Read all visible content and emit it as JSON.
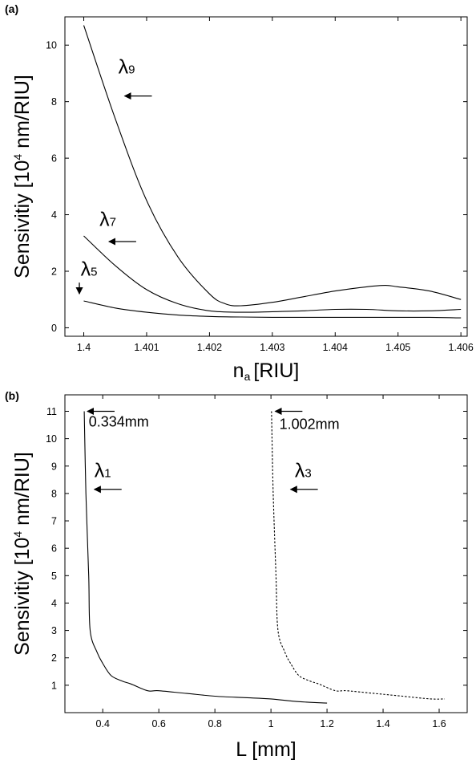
{
  "chart_data": [
    {
      "type": "line",
      "panel_label": "(a)",
      "xlabel": {
        "main": "n",
        "sub": "a",
        "unit": "[RIU]"
      },
      "ylabel": {
        "main": "Sensivitiy [10",
        "sup": "4",
        "rest": " nm/RIU]"
      },
      "xlim": [
        1.3997,
        1.4061
      ],
      "ylim": [
        -0.3,
        11
      ],
      "xticks": [
        1.4,
        1.401,
        1.402,
        1.403,
        1.404,
        1.405,
        1.406
      ],
      "xtick_labels": [
        "1.4",
        "1.401",
        "1.402",
        "1.403",
        "1.404",
        "1.405",
        "1.406"
      ],
      "yticks": [
        0,
        2,
        4,
        6,
        8,
        10
      ],
      "ytick_labels": [
        "0",
        "2",
        "4",
        "6",
        "8",
        "10"
      ],
      "grid": false,
      "series": [
        {
          "name": "λ9",
          "dash": false,
          "x": [
            1.4,
            1.4005,
            1.401,
            1.4015,
            1.402,
            1.40225,
            1.4025,
            1.403,
            1.4035,
            1.404,
            1.4045,
            1.4048,
            1.405,
            1.4055,
            1.406
          ],
          "y": [
            10.7,
            7.4,
            4.5,
            2.5,
            1.2,
            0.85,
            0.78,
            0.9,
            1.1,
            1.3,
            1.45,
            1.5,
            1.45,
            1.3,
            1.0
          ]
        },
        {
          "name": "λ7",
          "dash": false,
          "x": [
            1.4,
            1.4005,
            1.401,
            1.4015,
            1.402,
            1.4025,
            1.403,
            1.4035,
            1.404,
            1.4045,
            1.405,
            1.4055,
            1.406
          ],
          "y": [
            3.25,
            2.2,
            1.35,
            0.85,
            0.6,
            0.55,
            0.57,
            0.6,
            0.65,
            0.65,
            0.6,
            0.6,
            0.65
          ]
        },
        {
          "name": "λ5",
          "dash": false,
          "x": [
            1.4,
            1.4005,
            1.401,
            1.4015,
            1.402,
            1.4025,
            1.403,
            1.4035,
            1.404,
            1.4045,
            1.405,
            1.4055,
            1.406
          ],
          "y": [
            0.95,
            0.7,
            0.55,
            0.45,
            0.4,
            0.38,
            0.37,
            0.37,
            0.37,
            0.37,
            0.37,
            0.37,
            0.35
          ]
        }
      ],
      "annotations": [
        {
          "label_main": "λ",
          "label_sub": "9",
          "x": 1.40055,
          "y": 9.0,
          "arrow": "left",
          "ax": 1.40065,
          "ay": 8.2
        },
        {
          "label_main": "λ",
          "label_sub": "7",
          "x": 1.40025,
          "y": 3.6,
          "arrow": "left",
          "ax": 1.4004,
          "ay": 3.05
        },
        {
          "label_main": "λ",
          "label_sub": "5",
          "x": 1.39995,
          "y": 1.85,
          "arrow": "down",
          "ax": 1.39993,
          "ay": 1.2
        }
      ]
    },
    {
      "type": "line",
      "panel_label": "(b)",
      "xlabel": {
        "main": "L [mm]",
        "sub": "",
        "unit": ""
      },
      "ylabel": {
        "main": "Sensivitiy [10",
        "sup": "4",
        "rest": " nm/RIU]"
      },
      "xlim": [
        0.265,
        1.7
      ],
      "ylim": [
        0,
        11.6
      ],
      "xticks": [
        0.4,
        0.6,
        0.8,
        1.0,
        1.2,
        1.4,
        1.6
      ],
      "xtick_labels": [
        "0.4",
        "0.6",
        "0.8",
        "1",
        "1.2",
        "1.4",
        "1.6"
      ],
      "yticks": [
        1,
        2,
        3,
        4,
        5,
        6,
        7,
        8,
        9,
        10,
        11
      ],
      "ytick_labels": [
        "1",
        "2",
        "3",
        "4",
        "5",
        "6",
        "7",
        "8",
        "9",
        "10",
        "11"
      ],
      "grid": false,
      "series": [
        {
          "name": "λ1",
          "dash": false,
          "x": [
            0.334,
            0.34,
            0.35,
            0.355,
            0.38,
            0.4,
            0.43,
            0.47,
            0.5,
            0.56,
            0.6,
            0.7,
            0.8,
            0.9,
            1.0,
            1.1,
            1.2
          ],
          "y": [
            11.0,
            8.0,
            5.0,
            3.0,
            2.2,
            1.8,
            1.35,
            1.15,
            1.05,
            0.8,
            0.8,
            0.7,
            0.6,
            0.55,
            0.5,
            0.4,
            0.35
          ]
        },
        {
          "name": "λ3",
          "dash": true,
          "x": [
            1.002,
            1.008,
            1.018,
            1.025,
            1.05,
            1.07,
            1.1,
            1.14,
            1.17,
            1.23,
            1.27,
            1.37,
            1.47,
            1.57,
            1.62
          ],
          "y": [
            11.0,
            8.0,
            5.0,
            3.0,
            2.2,
            1.8,
            1.35,
            1.15,
            1.05,
            0.8,
            0.8,
            0.7,
            0.6,
            0.5,
            0.5
          ]
        }
      ],
      "annotations": [
        {
          "text": "0.334mm",
          "x": 0.35,
          "y": 10.45,
          "arrow": "left",
          "ax": 0.345,
          "ay": 11.0
        },
        {
          "text": "1.002mm",
          "x": 1.03,
          "y": 10.35,
          "arrow": "left",
          "ax": 1.015,
          "ay": 11.0
        },
        {
          "label_main": "λ",
          "label_sub": "1",
          "x": 0.37,
          "y": 8.6,
          "arrow": "left",
          "ax": 0.37,
          "ay": 8.15
        },
        {
          "label_main": "λ",
          "label_sub": "3",
          "x": 1.085,
          "y": 8.6,
          "arrow": "left",
          "ax": 1.07,
          "ay": 8.15
        }
      ]
    }
  ]
}
